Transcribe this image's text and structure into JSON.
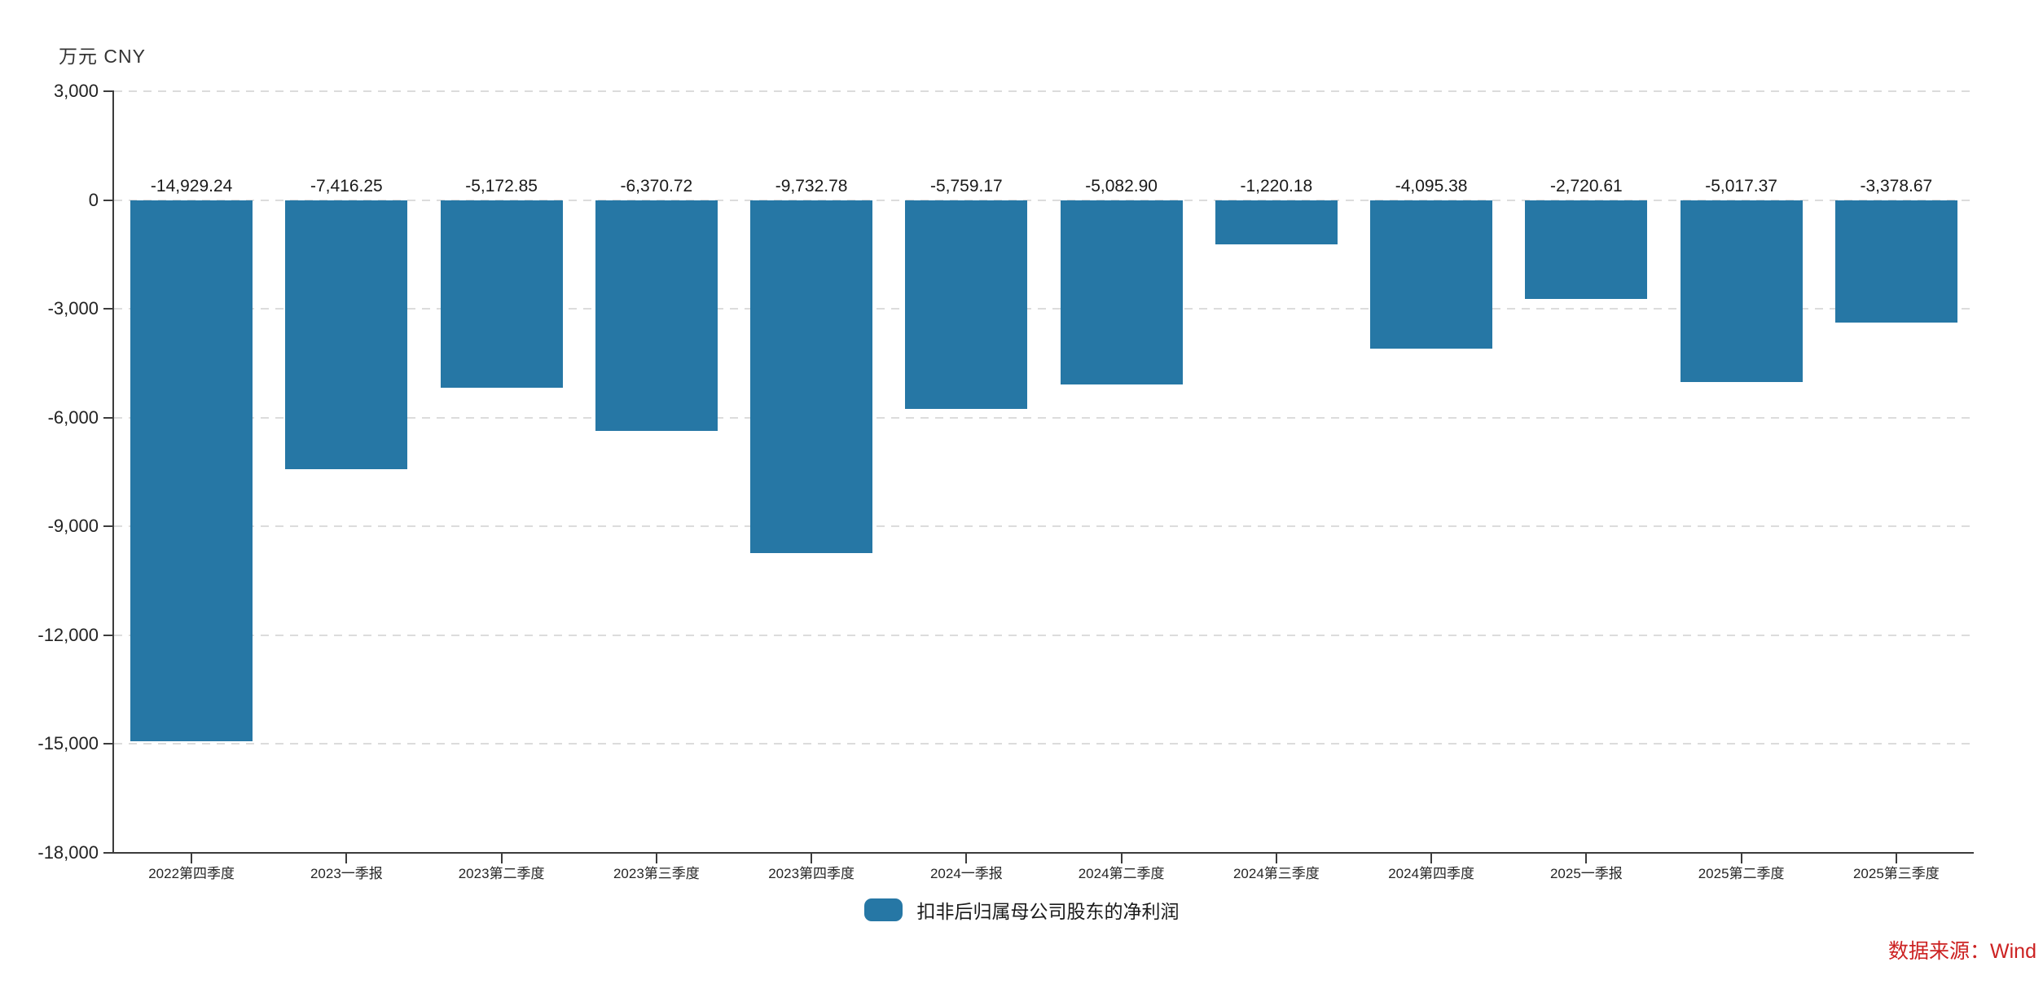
{
  "chart": {
    "unit_label": "万元 CNY",
    "source_label": "数据来源：Wind"
  },
  "chart_data": {
    "type": "bar",
    "title": "",
    "ylabel_unit": "万元 CNY",
    "categories": [
      "2022第四季度",
      "2023一季报",
      "2023第二季度",
      "2023第三季度",
      "2023第四季度",
      "2024一季报",
      "2024第二季度",
      "2024第三季度",
      "2024第四季度",
      "2025一季报",
      "2025第二季度",
      "2025第三季度"
    ],
    "series": [
      {
        "name": "扣非后归属母公司股东的净利润",
        "values": [
          -14929.24,
          -7416.25,
          -5172.85,
          -6370.72,
          -9732.78,
          -5759.17,
          -5082.9,
          -1220.18,
          -4095.38,
          -2720.61,
          -5017.37,
          -3378.67
        ]
      }
    ],
    "data_labels": [
      "-14,929.24",
      "-7,416.25",
      "-5,172.85",
      "-6,370.72",
      "-9,732.78",
      "-5,759.17",
      "-5,082.90",
      "-1,220.18",
      "-4,095.38",
      "-2,720.61",
      "-5,017.37",
      "-3,378.67"
    ],
    "y_ticks": [
      3000,
      0,
      -3000,
      -6000,
      -9000,
      -12000,
      -15000,
      -18000
    ],
    "y_tick_labels": [
      "3,000",
      "0",
      "-3,000",
      "-6,000",
      "-9,000",
      "-12,000",
      "-15,000",
      "-18,000"
    ],
    "ylim": [
      -18000,
      3000
    ],
    "grid": "horizontal-dashed",
    "legend_position": "bottom-center",
    "bar_color": "#2677A5",
    "grid_color": "#DCDCDC",
    "axis_color": "#3C3C3C",
    "text_color": "#1A1A1A",
    "source_color": "#CC2222"
  }
}
